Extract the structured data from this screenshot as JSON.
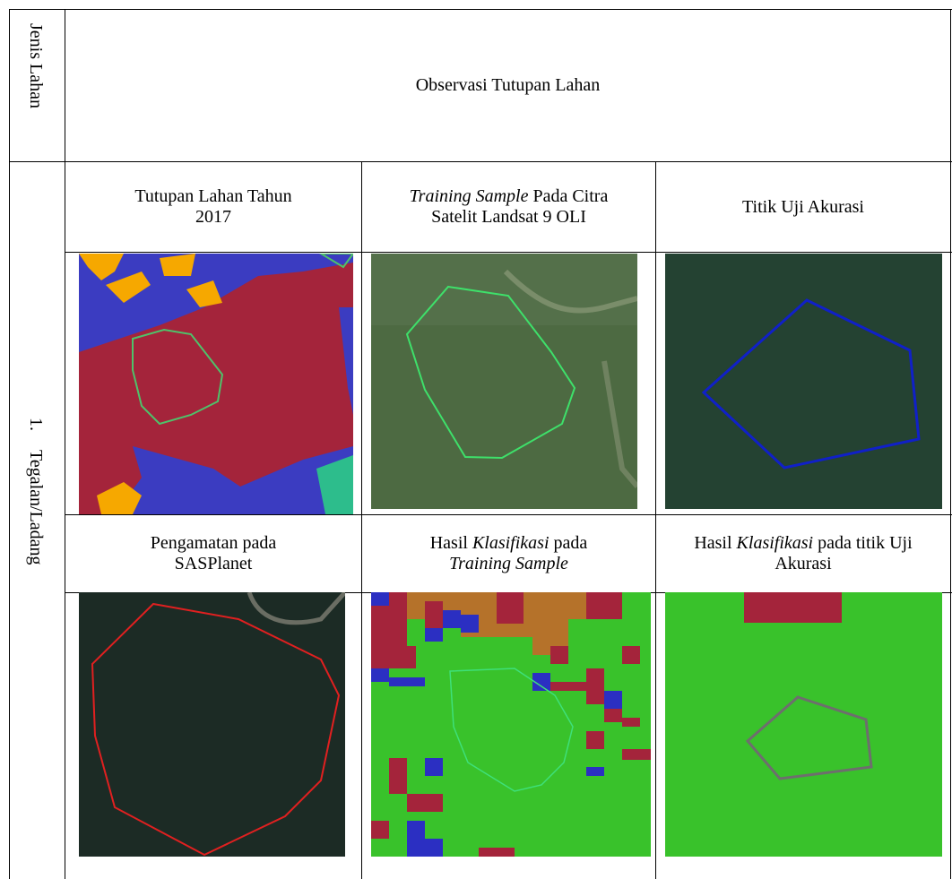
{
  "header": {
    "row_label": "Jenis Lahan",
    "title": "Observasi Tutupan Lahan"
  },
  "row": {
    "number": "1.",
    "label": "Tegalan/Ladang"
  },
  "captions": [
    [
      {
        "text": "Tutupan Lahan Tahun 2017",
        "italic": false
      }
    ],
    [
      {
        "text": "Training Sample",
        "italic": true
      },
      {
        "text": " Pada Citra Satelit Landsat 9 OLI",
        "italic": false
      }
    ],
    [
      {
        "text": "Titik Uji Akurasi",
        "italic": false
      }
    ],
    [
      {
        "text": "Pengamatan pada SASPlanet",
        "italic": false
      }
    ],
    [
      {
        "text": "Hasil ",
        "italic": false
      },
      {
        "text": "Klasifikasi",
        "italic": true
      },
      {
        "text": " pada ",
        "italic": false
      },
      {
        "text": "Training Sample",
        "italic": true
      }
    ],
    [
      {
        "text": "Hasil ",
        "italic": false
      },
      {
        "text": "Klasifikasi",
        "italic": true
      },
      {
        "text": " pada titik Uji Akurasi",
        "italic": false
      }
    ]
  ]
}
